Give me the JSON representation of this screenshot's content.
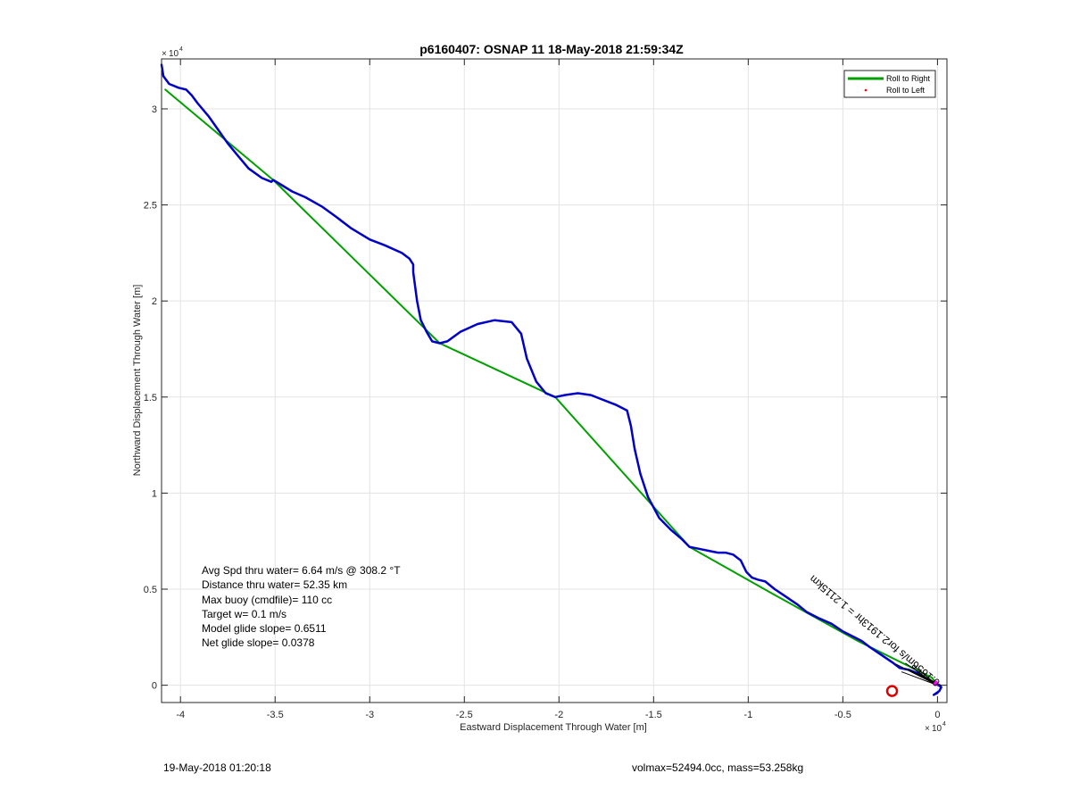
{
  "chart_data": {
    "type": "line",
    "title": "p6160407: OSNAP 11 18-May-2018 21:59:34Z",
    "xlabel": "Eastward Displacement Through Water [m]",
    "ylabel": "Northward Displacement Through Water [m]",
    "x_exponent": "10",
    "x_exponent_power": "4",
    "y_exponent": "10",
    "y_exponent_power": "4",
    "xlim": [
      -41000,
      500
    ],
    "ylim": [
      -900,
      32600
    ],
    "xticks": [
      -40000,
      -35000,
      -30000,
      -25000,
      -20000,
      -15000,
      -10000,
      -5000,
      0
    ],
    "xtick_labels": [
      "-4",
      "-3.5",
      "-3",
      "-2.5",
      "-2",
      "-1.5",
      "-1",
      "-0.5",
      "0"
    ],
    "yticks": [
      0,
      5000,
      10000,
      15000,
      20000,
      25000,
      30000
    ],
    "ytick_labels": [
      "0",
      "0.5",
      "1",
      "1.5",
      "2",
      "2.5",
      "3"
    ],
    "grid": true,
    "legend_position": "top-right",
    "legend": [
      {
        "label": "Roll to Right",
        "color": "#00a000",
        "marker": "line"
      },
      {
        "label": "Roll to Left",
        "color": "#ff0000",
        "marker": "dot"
      }
    ],
    "series": [
      {
        "color": "#00a000",
        "x": [
          -40800,
          -35100,
          -26300,
          -20200,
          -13100,
          -8600,
          -4200,
          -300,
          0
        ],
        "y": [
          31000,
          26300,
          17800,
          15000,
          7200,
          4700,
          2300,
          400,
          0
        ]
      },
      {
        "color": "#0000c8",
        "x": [
          -41000,
          -40900,
          -40600,
          -40100,
          -39700,
          -39400,
          -39100,
          -38500,
          -38000,
          -37500,
          -37000,
          -36400,
          -35700,
          -35200,
          -35100,
          -34600,
          -34100,
          -33400,
          -32500,
          -31800,
          -31000,
          -30000,
          -29200,
          -28300,
          -27900,
          -27700,
          -27700,
          -27500,
          -27300,
          -27000,
          -26700,
          -26300,
          -25900,
          -25200,
          -24300,
          -23400,
          -22500,
          -22000,
          -21700,
          -21200,
          -20700,
          -20200,
          -19700,
          -19000,
          -18300,
          -17800,
          -17000,
          -16400,
          -16200,
          -16000,
          -15700,
          -15300,
          -14700,
          -14100,
          -13500,
          -13100,
          -12600,
          -12100,
          -11600,
          -11200,
          -10800,
          -10400,
          -10100,
          -9800,
          -9500,
          -9100,
          -8600,
          -8000,
          -7400,
          -6900,
          -6300,
          -5600,
          -5000,
          -4400,
          -4000,
          -3600,
          -3000,
          -2400,
          -2000,
          -1500,
          -1000,
          -500,
          0,
          200,
          100,
          -200,
          0
        ],
        "y": [
          32300,
          31700,
          31300,
          31100,
          31000,
          30700,
          30300,
          29600,
          28900,
          28200,
          27600,
          26900,
          26400,
          26200,
          26300,
          26000,
          25700,
          25400,
          24900,
          24400,
          23800,
          23200,
          22900,
          22500,
          22200,
          21900,
          21500,
          20000,
          19000,
          18400,
          17900,
          17800,
          17900,
          18400,
          18800,
          19000,
          18900,
          18300,
          17000,
          15800,
          15200,
          15000,
          15100,
          15200,
          15100,
          14900,
          14600,
          14300,
          13500,
          12300,
          11000,
          9800,
          8700,
          8100,
          7600,
          7200,
          7100,
          7000,
          6900,
          6900,
          6800,
          6500,
          5900,
          5600,
          5500,
          5400,
          5000,
          4600,
          4200,
          3800,
          3500,
          3200,
          2800,
          2500,
          2300,
          2000,
          1600,
          1200,
          900,
          800,
          600,
          300,
          50,
          -100,
          -300,
          -500,
          -400
        ]
      }
    ],
    "markers": [
      {
        "type": "circle",
        "x": -2400,
        "y": -300,
        "color": "#dd0000"
      },
      {
        "type": "dot",
        "x": -100,
        "y": 100,
        "color": "#ff00ff"
      }
    ],
    "annotation_rotated": "-0.1656m/s for2.1913hr = 1.2115km",
    "stats_lines": [
      "Avg Spd thru water=  6.64 m/s @ 308.2 °T",
      "Distance thru water= 52.35 km",
      "Max buoy (cmdfile)= 110 cc",
      "Target w= 0.1 m/s",
      "Model glide slope= 0.6511",
      "Net glide slope= 0.0378"
    ]
  },
  "footer": {
    "date": "19-May-2018 01:20:18",
    "volume_mass": "volmax=52494.0cc, mass=53.258kg"
  }
}
